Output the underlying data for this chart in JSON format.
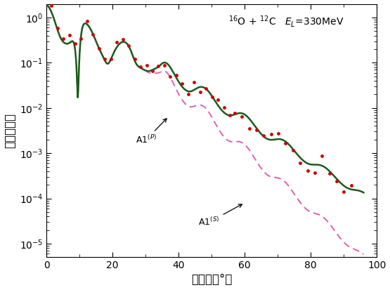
{
  "title_text": "$^{16}$O + $^{12}$C   $E_{L}$=330MeV",
  "xlabel": "散乱角（°）",
  "ylabel": "微分断面積",
  "xmin": 0,
  "xmax": 100,
  "ymin": 5e-06,
  "ymax": 2.0,
  "background_color": "#ffffff",
  "line_color_green": "#1a5c1a",
  "line_color_pink": "#e060b0",
  "dot_color": "#cc0000",
  "figsize": [
    5.55,
    4.13
  ],
  "dpi": 100
}
